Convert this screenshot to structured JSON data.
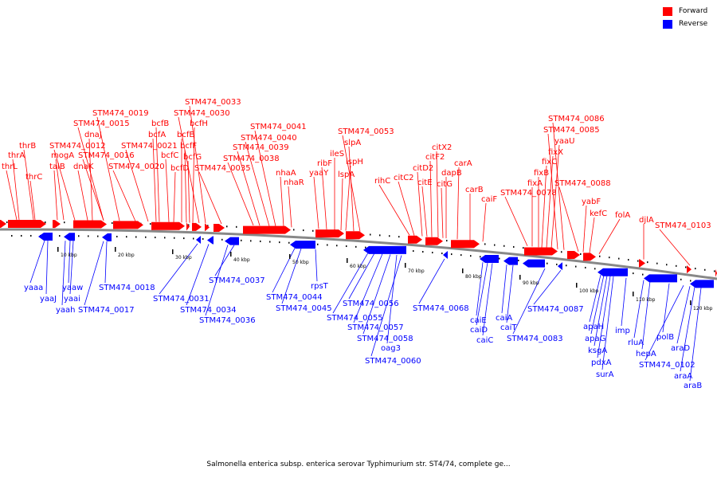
{
  "legend": {
    "items": [
      {
        "label": "Forward",
        "color": "#ff0000"
      },
      {
        "label": "Reverse",
        "color": "#0000ff"
      }
    ]
  },
  "caption": "Salmonella enterica subsp. enterica serovar Typhimurium str. ST4/74, complete ge...",
  "colors": {
    "forward": "#ff0000",
    "reverse": "#0000ff",
    "backbone": "#888888"
  },
  "scale_labels": [
    "10 kbp",
    "20 kbp",
    "30 kbp",
    "40 kbp",
    "50 kbp",
    "60 kbp",
    "70 kbp",
    "80 kbp",
    "90 kbp",
    "100 kbp",
    "110 kbp",
    "120 kbp"
  ],
  "forward_labels": [
    "thrL",
    "thrA",
    "thrB",
    "thrC",
    "talB",
    "mogA",
    "STM474_0012",
    "dnaK",
    "dnaJ",
    "STM474_0015",
    "STM474_0016",
    "STM474_0019",
    "STM474_0020",
    "STM474_0021",
    "bcfA",
    "bcfB",
    "bcfC",
    "bcfD",
    "bcfE",
    "bcfF",
    "bcfG",
    "bcfH",
    "STM474_0030",
    "STM474_0033",
    "STM474_0035",
    "STM474_0038",
    "STM474_0039",
    "STM474_0040",
    "STM474_0041",
    "nhaA",
    "nhaR",
    "yaaY",
    "ribF",
    "ileS",
    "lspA",
    "ispH",
    "slpA",
    "STM474_0053",
    "rihC",
    "citC2",
    "citD2",
    "citE",
    "citF2",
    "citX2",
    "citG",
    "dapB",
    "carA",
    "carB",
    "caiF",
    "STM474_0078",
    "fixA",
    "fixB",
    "fixC",
    "fixX",
    "yaaU",
    "STM474_0085",
    "STM474_0086",
    "STM474_0088",
    "yabF",
    "kefC",
    "folA",
    "djlA",
    "STM474_0103"
  ],
  "reverse_labels": [
    "yaaa",
    "yaaJ",
    "yaah",
    "yaaw",
    "yaai",
    "STM474_0017",
    "STM474_0018",
    "STM474_0031",
    "STM474_0034",
    "STM474_0036",
    "STM474_0037",
    "STM474_0044",
    "STM474_0045",
    "rpsT",
    "STM474_0055",
    "STM474_0056",
    "STM474_0057",
    "STM474_0058",
    "oag3",
    "STM474_0060",
    "STM474_0068",
    "caiE",
    "caiD",
    "caiC",
    "caiA",
    "caiT",
    "STM474_0083",
    "STM474_0087",
    "apaH",
    "apaG",
    "ksgA",
    "pdxA",
    "surA",
    "imp",
    "rluA",
    "hepA",
    "polB",
    "STM474_0102",
    "araD",
    "araA",
    "araB"
  ]
}
